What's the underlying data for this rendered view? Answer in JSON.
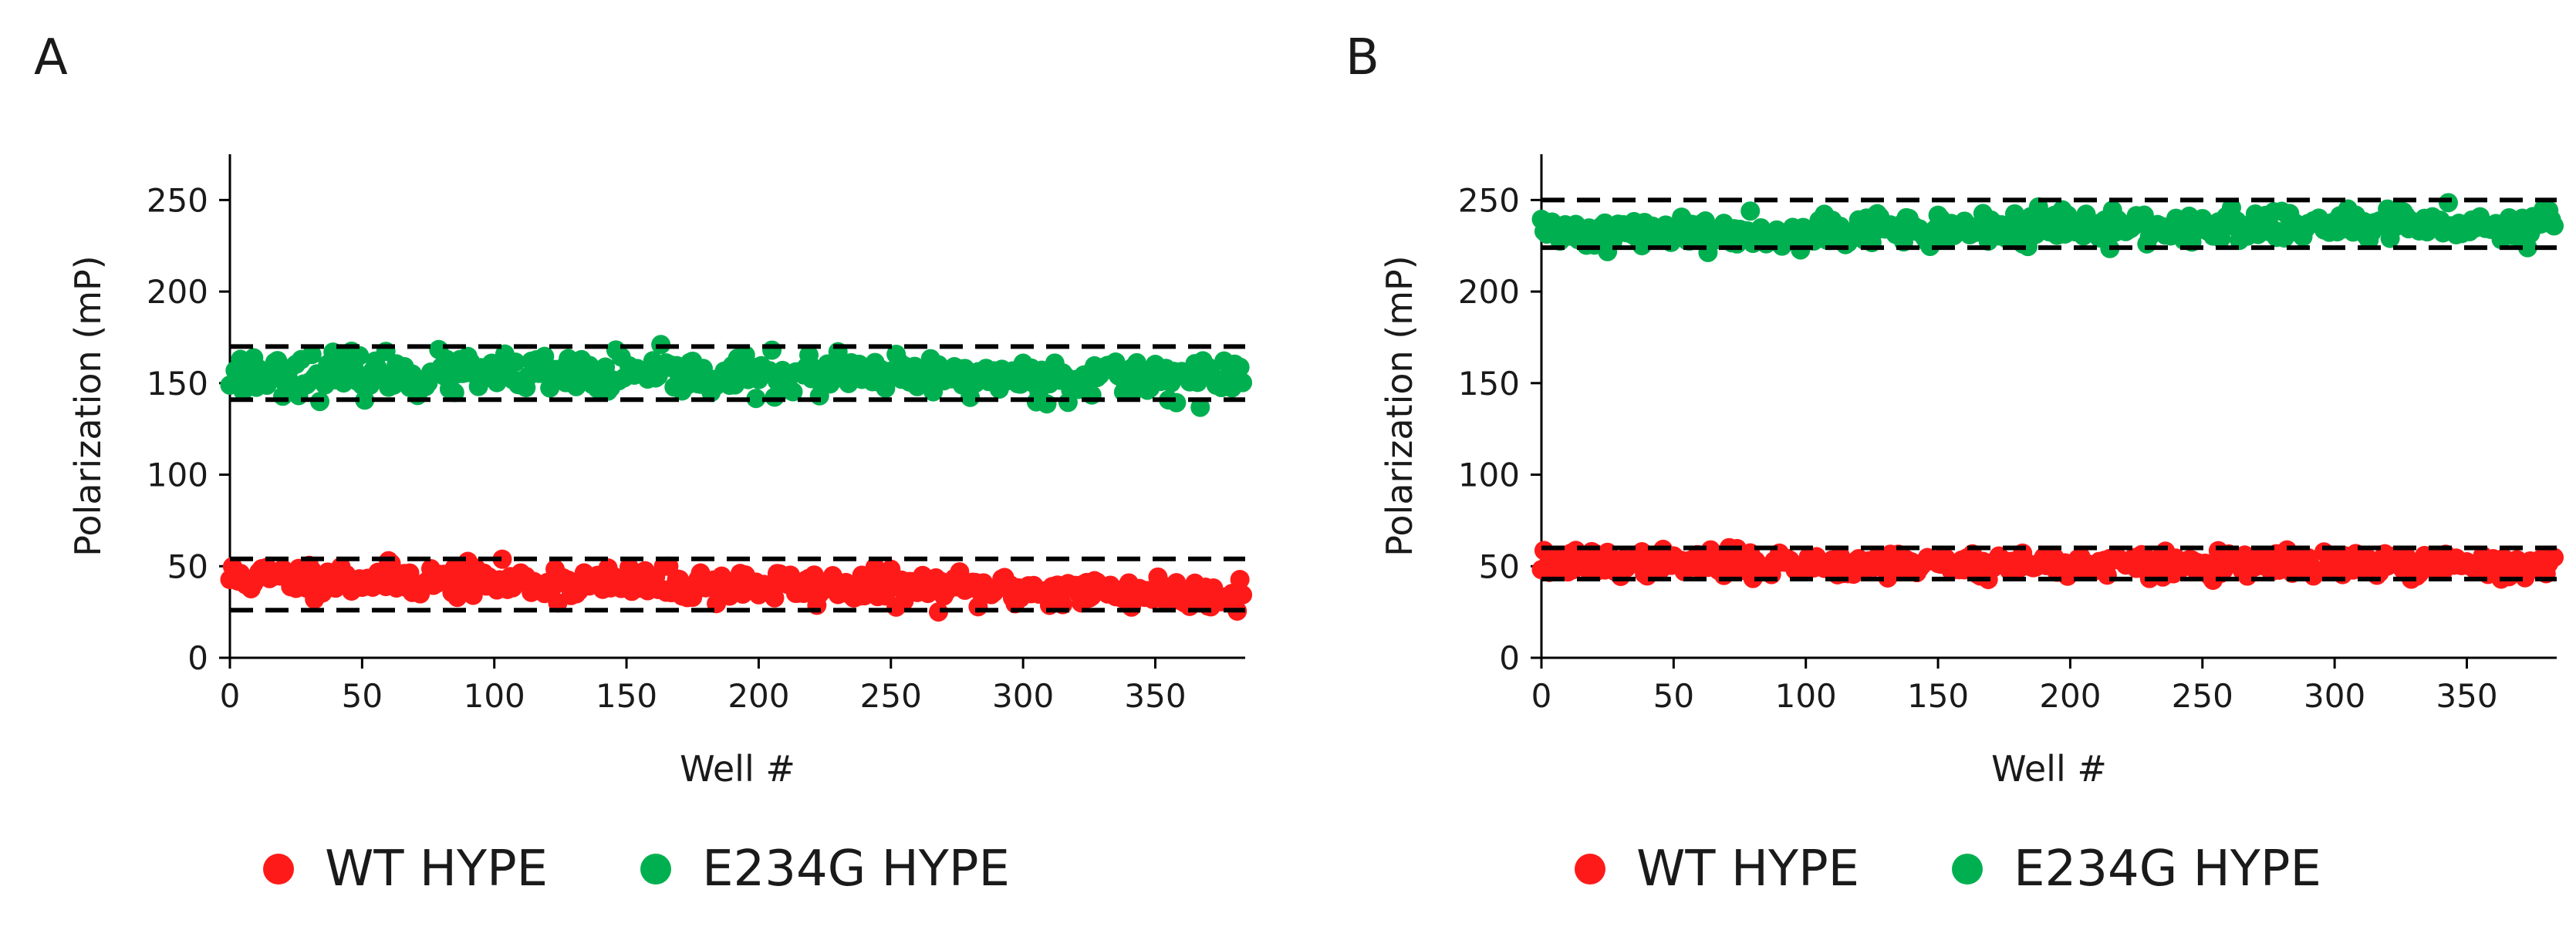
{
  "colors": {
    "wt": "#ff1a1a",
    "e234g": "#00b050",
    "axis": "#000000"
  },
  "chart_data": [
    {
      "panel": "A",
      "type": "scatter",
      "xlabel": "Well #",
      "ylabel": "Polarization (mP)",
      "xlim": [
        0,
        384
      ],
      "ylim": [
        0,
        275
      ],
      "xticks": [
        0,
        50,
        100,
        150,
        200,
        250,
        300,
        350
      ],
      "yticks": [
        0,
        50,
        100,
        150,
        200,
        250
      ],
      "n_points": 384,
      "series": [
        {
          "name": "WT HYPE",
          "color": "#ff1a1a",
          "trend_start": 44,
          "trend_end": 35,
          "noise": 4.5,
          "seed": 11
        },
        {
          "name": "E234G HYPE",
          "color": "#00b050",
          "trend_start": 155,
          "trend_end": 153,
          "noise": 5.5,
          "seed": 23
        }
      ],
      "dashed_lines": [
        170,
        141,
        54,
        26
      ],
      "legend": [
        {
          "label": "WT HYPE",
          "color": "#ff1a1a"
        },
        {
          "label": "E234G HYPE",
          "color": "#00b050"
        }
      ]
    },
    {
      "panel": "B",
      "type": "scatter",
      "xlabel": "Well #",
      "ylabel": "Polarization (mP)",
      "xlim": [
        0,
        384
      ],
      "ylim": [
        0,
        275
      ],
      "xticks": [
        0,
        50,
        100,
        150,
        200,
        250,
        300,
        350
      ],
      "yticks": [
        0,
        50,
        100,
        150,
        200,
        250
      ],
      "n_points": 384,
      "series": [
        {
          "name": "WT HYPE",
          "color": "#ff1a1a",
          "trend_start": 52,
          "trend_end": 50,
          "noise": 3.5,
          "seed": 37
        },
        {
          "name": "E234G HYPE",
          "color": "#00b050",
          "trend_start": 232,
          "trend_end": 237,
          "noise": 4.5,
          "seed": 41
        }
      ],
      "dashed_lines": [
        250,
        224,
        60,
        43
      ],
      "legend": [
        {
          "label": "WT HYPE",
          "color": "#ff1a1a"
        },
        {
          "label": "E234G HYPE",
          "color": "#00b050"
        }
      ]
    }
  ]
}
